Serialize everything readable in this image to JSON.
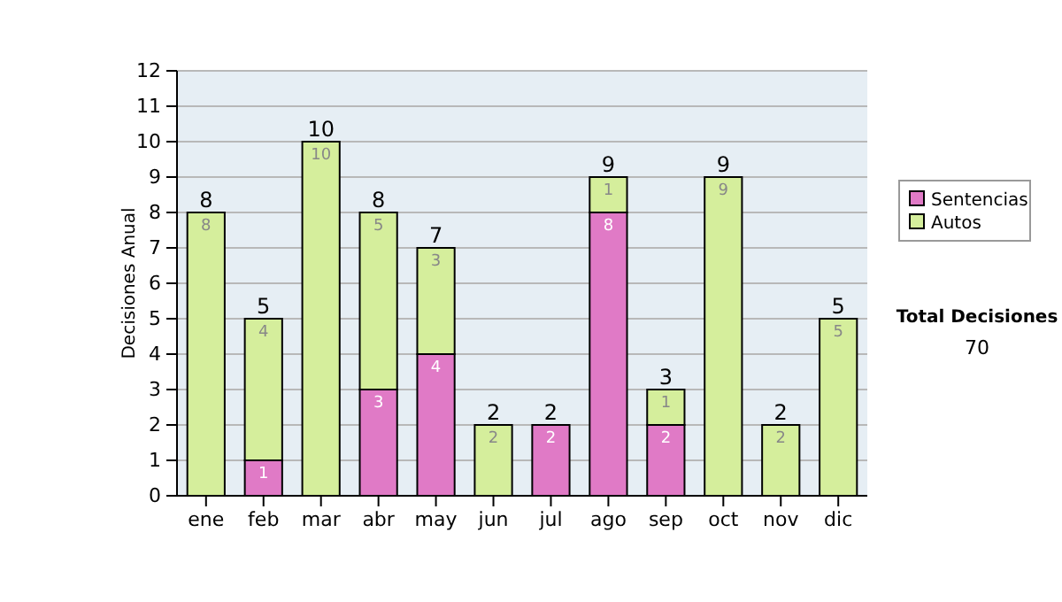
{
  "chart_data": {
    "type": "bar",
    "stacked": true,
    "ylabel": "Decisiones Anual",
    "categories": [
      "ene",
      "feb",
      "mar",
      "abr",
      "may",
      "jun",
      "jul",
      "ago",
      "sep",
      "oct",
      "nov",
      "dic"
    ],
    "series": [
      {
        "name": "Sentencias",
        "color": "#e07ac6",
        "values": [
          0,
          1,
          0,
          3,
          4,
          0,
          2,
          8,
          2,
          0,
          0,
          0
        ],
        "value_labels": [
          null,
          "1",
          null,
          "3",
          "4",
          null,
          "2",
          "8",
          "2",
          null,
          null,
          null
        ]
      },
      {
        "name": "Autos",
        "color": "#d5ee9c",
        "values": [
          8,
          4,
          10,
          5,
          3,
          2,
          0,
          1,
          1,
          9,
          2,
          5
        ],
        "value_labels": [
          "8",
          "4",
          "10",
          "5",
          "3",
          "2",
          null,
          "1",
          "1",
          "9",
          "2",
          "5"
        ]
      }
    ],
    "totals": [
      "8",
      "5",
      "10",
      "8",
      "7",
      "2",
      "2",
      "9",
      "3",
      "9",
      "2",
      "5"
    ],
    "ylim": [
      0,
      12
    ],
    "yticks": [
      0,
      1,
      2,
      3,
      4,
      5,
      6,
      7,
      8,
      9,
      10,
      11,
      12
    ],
    "grid": "y",
    "legend": "right",
    "annotations": [
      "Total Decisiones",
      "70"
    ]
  }
}
